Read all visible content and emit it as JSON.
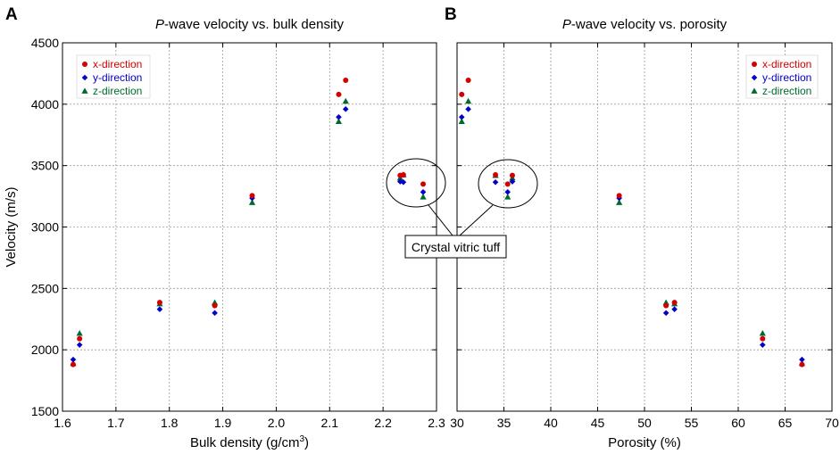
{
  "colors": {
    "x": "#d40000",
    "y": "#0000c8",
    "z": "#006a2e"
  },
  "annotation": {
    "text": "Crystal vitric tuff"
  },
  "chart_data": [
    {
      "type": "scatter",
      "letter": "A",
      "title_italic": "P",
      "title_rest": "-wave velocity vs. bulk density",
      "xlabel_main": "Bulk density (g/cm",
      "xlabel_sup": "3",
      "xlabel_end": ")",
      "ylabel": "Velocity (m/s)",
      "xlim": [
        1.6,
        2.3
      ],
      "ylim": [
        1500,
        4500
      ],
      "xticks": [
        "1.6",
        "1.7",
        "1.8",
        "1.9",
        "2.0",
        "2.1",
        "2.2",
        "2.3"
      ],
      "yticks": [
        "1500",
        "2000",
        "2500",
        "3000",
        "3500",
        "4000",
        "4500"
      ],
      "grid": true,
      "legend_position": "top-left",
      "series": [
        {
          "key": "x",
          "name": "x-direction",
          "marker": "circle",
          "points": [
            [
              1.62,
              1880
            ],
            [
              1.632,
              2090
            ],
            [
              1.782,
              2385
            ],
            [
              1.885,
              2360
            ],
            [
              1.955,
              3255
            ],
            [
              2.117,
              4080
            ],
            [
              2.13,
              4195
            ],
            [
              2.232,
              3420
            ],
            [
              2.238,
              3425
            ],
            [
              2.275,
              3350
            ]
          ]
        },
        {
          "key": "y",
          "name": "y-direction",
          "marker": "diamond",
          "points": [
            [
              1.62,
              1920
            ],
            [
              1.632,
              2040
            ],
            [
              1.782,
              2330
            ],
            [
              1.885,
              2300
            ],
            [
              1.955,
              3235
            ],
            [
              2.117,
              3895
            ],
            [
              2.13,
              3960
            ],
            [
              2.232,
              3370
            ],
            [
              2.238,
              3365
            ],
            [
              2.275,
              3285
            ]
          ]
        },
        {
          "key": "z",
          "name": "z-direction",
          "marker": "triangle",
          "points": [
            [
              1.62,
              1890
            ],
            [
              1.632,
              2135
            ],
            [
              1.782,
              2375
            ],
            [
              1.885,
              2385
            ],
            [
              1.955,
              3200
            ],
            [
              2.117,
              3860
            ],
            [
              2.13,
              4025
            ],
            [
              2.232,
              3400
            ],
            [
              2.238,
              3425
            ],
            [
              2.275,
              3245
            ]
          ]
        }
      ]
    },
    {
      "type": "scatter",
      "letter": "B",
      "title_italic": "P",
      "title_rest": "-wave velocity vs. porosity",
      "xlabel_main": "Porosity (%)",
      "xlabel_sup": "",
      "xlabel_end": "",
      "ylabel": "",
      "xlim": [
        30,
        70
      ],
      "ylim": [
        1500,
        4500
      ],
      "xticks": [
        "30",
        "35",
        "40",
        "45",
        "50",
        "55",
        "60",
        "65",
        "70"
      ],
      "yticks": [],
      "grid": true,
      "legend_position": "top-right",
      "series": [
        {
          "key": "x",
          "name": "x-direction",
          "marker": "circle",
          "points": [
            [
              66.8,
              1880
            ],
            [
              62.6,
              2090
            ],
            [
              53.2,
              2385
            ],
            [
              52.3,
              2360
            ],
            [
              47.3,
              3255
            ],
            [
              30.5,
              4080
            ],
            [
              31.2,
              4195
            ],
            [
              34.1,
              3425
            ],
            [
              35.4,
              3350
            ],
            [
              35.9,
              3420
            ]
          ]
        },
        {
          "key": "y",
          "name": "y-direction",
          "marker": "diamond",
          "points": [
            [
              66.8,
              1920
            ],
            [
              62.6,
              2040
            ],
            [
              53.2,
              2330
            ],
            [
              52.3,
              2300
            ],
            [
              47.3,
              3235
            ],
            [
              30.5,
              3895
            ],
            [
              31.2,
              3960
            ],
            [
              34.1,
              3365
            ],
            [
              35.4,
              3285
            ],
            [
              35.9,
              3370
            ]
          ]
        },
        {
          "key": "z",
          "name": "z-direction",
          "marker": "triangle",
          "points": [
            [
              66.8,
              1890
            ],
            [
              62.6,
              2135
            ],
            [
              53.2,
              2375
            ],
            [
              52.3,
              2385
            ],
            [
              47.3,
              3200
            ],
            [
              30.5,
              3860
            ],
            [
              31.2,
              4025
            ],
            [
              34.1,
              3420
            ],
            [
              35.4,
              3245
            ],
            [
              35.9,
              3400
            ]
          ]
        }
      ]
    }
  ]
}
